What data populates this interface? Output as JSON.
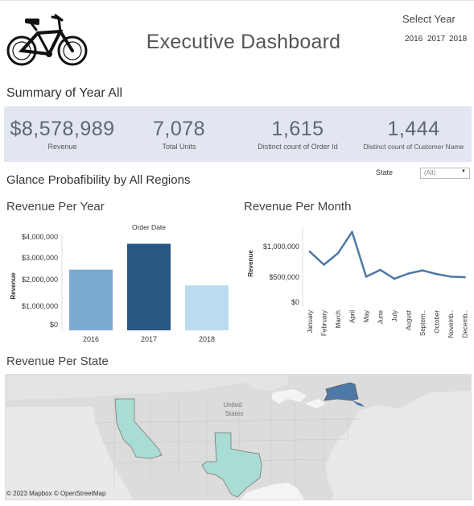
{
  "header": {
    "title": "Executive Dashboard",
    "select_year_label": "Select Year",
    "years": [
      "2016",
      "2017",
      "2018"
    ]
  },
  "summary": {
    "title": "Summary of Year All",
    "kpis": [
      {
        "value": "$8,578,989",
        "label": "Revenue"
      },
      {
        "value": "7,078",
        "label": "Total Units"
      },
      {
        "value": "1,615",
        "label": "Distinct count of Order Id"
      },
      {
        "value": "1,444",
        "label": "Distinct count of Customer Name"
      }
    ]
  },
  "glance": {
    "title": "Glance Probafibility by All Regions",
    "state_label": "State",
    "state_value": "(All)"
  },
  "colors": {
    "kpi_panel": "#e1e6f0",
    "bar_2016": "#7aaad2",
    "bar_2017": "#2a5783",
    "bar_2018": "#b9dcf0",
    "line": "#4e79a7",
    "map_highlight_dark": "#4e79a7",
    "map_highlight_light": "#a9ddd4"
  },
  "revenue_per_year": {
    "title": "Revenue Per Year",
    "header": "Order Date",
    "ylabel": "Revenue",
    "yticks": [
      "$4,000,000",
      "$3,000,000",
      "$2,000,000",
      "$1,000,000",
      "$0"
    ]
  },
  "revenue_per_month": {
    "title": "Revenue Per Month",
    "ylabel": "Revenue",
    "yticks": [
      "$1,000,000",
      "$500,000",
      "$0"
    ],
    "xticks": [
      "January",
      "February",
      "March",
      "April",
      "May",
      "June",
      "July",
      "August",
      "Septem..",
      "October",
      "Novemb..",
      "Decemb.."
    ]
  },
  "revenue_per_state": {
    "title": "Revenue Per State",
    "country_label_1": "United",
    "country_label_2": "States",
    "credit": "© 2023 Mapbox  © OpenStreetMap"
  },
  "chart_data": [
    {
      "type": "bar",
      "title": "Revenue Per Year",
      "xlabel": "",
      "ylabel": "Revenue",
      "categories": [
        "2016",
        "2017",
        "2018"
      ],
      "values": [
        2700000,
        3850000,
        2000000
      ],
      "ylim": [
        0,
        4300000
      ],
      "grid": false
    },
    {
      "type": "line",
      "title": "Revenue Per Month",
      "xlabel": "",
      "ylabel": "Revenue",
      "categories": [
        "January",
        "February",
        "March",
        "April",
        "May",
        "June",
        "July",
        "August",
        "September",
        "October",
        "November",
        "December"
      ],
      "values": [
        1000000,
        750000,
        970000,
        1380000,
        520000,
        650000,
        480000,
        580000,
        640000,
        570000,
        520000,
        510000
      ],
      "ylim": [
        0,
        1500000
      ],
      "grid": false
    }
  ]
}
